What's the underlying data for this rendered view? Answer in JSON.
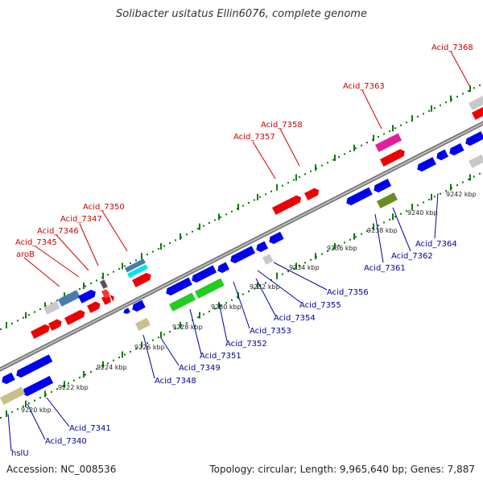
{
  "header": {
    "title": "Solibacter usitatus Ellin6076, complete genome"
  },
  "footer": {
    "accession": "Accession: NC_008536",
    "topology": "Topology: circular; Length: 9,965,640 bp; Genes: 7,887"
  },
  "colors": {
    "backbone": "#8c8c8c",
    "forward_gene": "#ff0000",
    "reverse_gene": "#0000ff",
    "forward_label": "#cc0000",
    "reverse_label": "#000099",
    "tick": "#0a7a0a"
  },
  "scale_ticks": [
    "9220 kbp",
    "9222 kbp",
    "9224 kbp",
    "9226 kbp",
    "9228 kbp",
    "9230 kbp",
    "9232 kbp",
    "9234 kbp",
    "9236 kbp",
    "9238 kbp",
    "9240 kbp",
    "9242 kbp"
  ],
  "forward_labels": [
    "Acid_7368",
    "Acid_7363",
    "Acid_7358",
    "Acid_7357",
    "Acid_7350",
    "Acid_7347",
    "Acid_7346",
    "Acid_7345",
    "aroB"
  ],
  "reverse_labels": [
    "Acid_7364",
    "Acid_7362",
    "Acid_7361",
    "Acid_7356",
    "Acid_7355",
    "Acid_7354",
    "Acid_7353",
    "Acid_7352",
    "Acid_7351",
    "Acid_7349",
    "Acid_7348",
    "Acid_7341",
    "Acid_7340",
    "hslU"
  ]
}
